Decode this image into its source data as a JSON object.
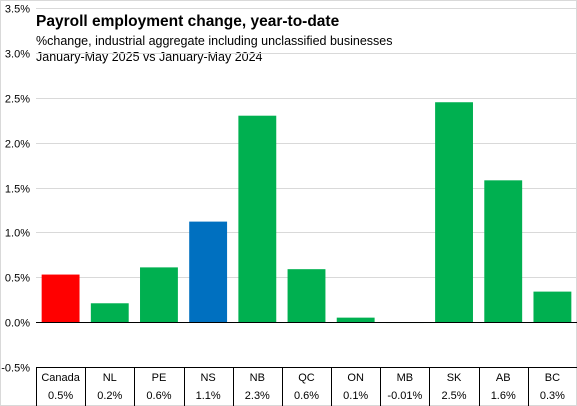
{
  "chart_data": {
    "type": "bar",
    "title": "Payroll employment change, year-to-date",
    "subtitle": [
      "%change, industrial aggregate including unclassified businesses",
      "January-May 2025 vs January-May 2024"
    ],
    "categories": [
      "Canada",
      "NL",
      "PE",
      "NS",
      "NB",
      "QC",
      "ON",
      "MB",
      "SK",
      "AB",
      "BC"
    ],
    "values": [
      0.53,
      0.21,
      0.61,
      1.12,
      2.3,
      0.59,
      0.05,
      -0.01,
      2.45,
      1.58,
      0.34
    ],
    "value_labels": [
      "0.5%",
      "0.2%",
      "0.6%",
      "1.1%",
      "2.3%",
      "0.6%",
      "0.1%",
      "-0.01%",
      "2.5%",
      "1.6%",
      "0.3%"
    ],
    "bar_colors": [
      "#ff0000",
      "#00b050",
      "#00b050",
      "#0070c0",
      "#00b050",
      "#00b050",
      "#00b050",
      "#00b050",
      "#00b050",
      "#00b050",
      "#00b050"
    ],
    "ylim": [
      -0.5,
      3.5
    ],
    "yticks": [
      -0.5,
      0.0,
      0.5,
      1.0,
      1.5,
      2.0,
      2.5,
      3.0,
      3.5
    ],
    "ytick_labels": [
      "-0.5%",
      "0.0%",
      "0.5%",
      "1.0%",
      "1.5%",
      "2.0%",
      "2.5%",
      "3.0%",
      "3.5%"
    ],
    "grid": true,
    "legend": "none"
  }
}
